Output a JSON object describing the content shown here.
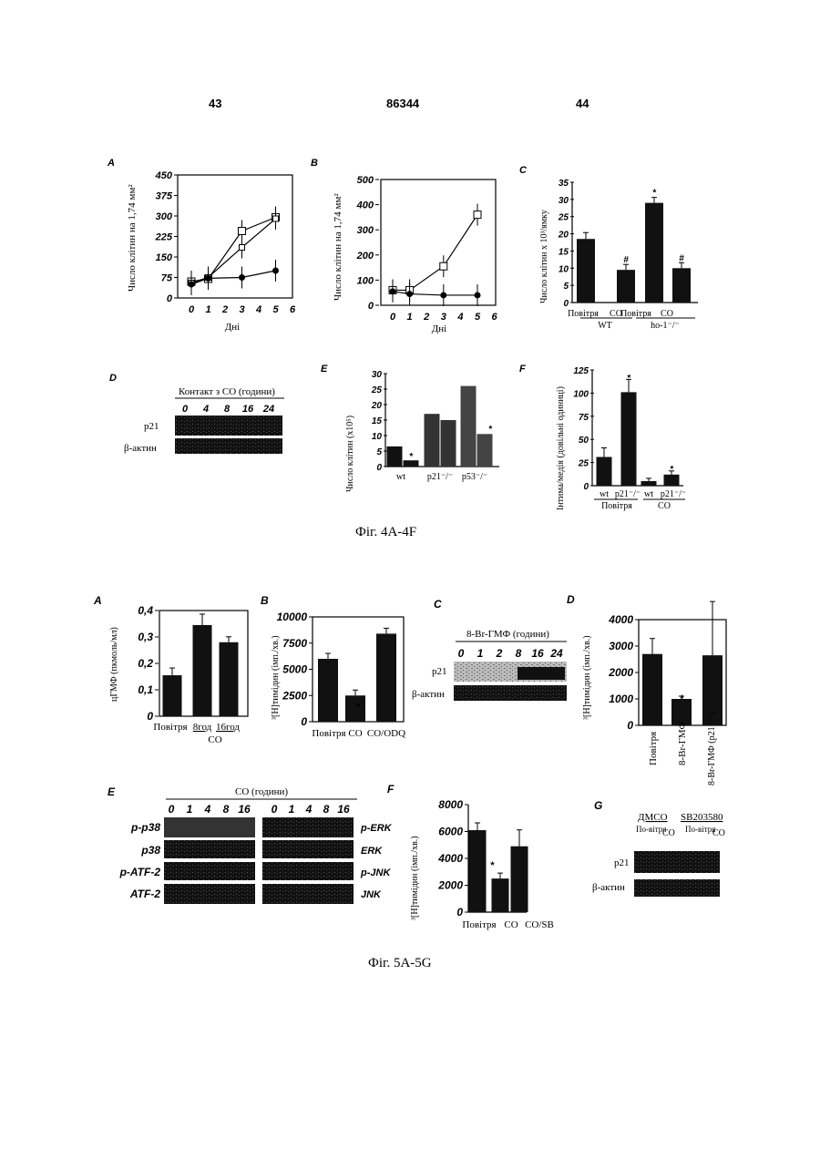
{
  "header": {
    "page_left": "43",
    "doc_number": "86344",
    "page_right": "44"
  },
  "captions": {
    "fig4": "Фіг. 4A-4F",
    "fig5": "Фіг. 5A-5G"
  },
  "fig4": {
    "A": {
      "letter": "A",
      "ylabel": "Число клітин на 1,74 мм²",
      "xlabel": "Дні",
      "yticks": [
        "450",
        "375",
        "300",
        "225",
        "150",
        "75",
        "0"
      ],
      "xticks": [
        "0",
        "1",
        "2",
        "3",
        "4",
        "5",
        "6"
      ],
      "ylim": [
        0,
        450
      ],
      "series": [
        {
          "marker": "square",
          "x": [
            0,
            1,
            3,
            5
          ],
          "y": [
            60,
            70,
            245,
            295
          ]
        },
        {
          "marker": "triangle",
          "x": [
            0,
            1,
            3,
            5
          ],
          "y": [
            55,
            75,
            185,
            290
          ]
        },
        {
          "marker": "circle",
          "x": [
            0,
            1,
            3,
            5
          ],
          "y": [
            50,
            72,
            75,
            100
          ]
        }
      ]
    },
    "B": {
      "letter": "B",
      "ylabel": "Число клітин на 1,74 мм²",
      "xlabel": "Дні",
      "yticks": [
        "500",
        "400",
        "300",
        "200",
        "100",
        "0"
      ],
      "xticks": [
        "0",
        "1",
        "2",
        "3",
        "4",
        "5",
        "6"
      ],
      "ylim": [
        0,
        500
      ],
      "series": [
        {
          "marker": "square",
          "x": [
            0,
            1,
            3,
            5
          ],
          "y": [
            60,
            60,
            155,
            360
          ]
        },
        {
          "marker": "circle",
          "x": [
            0,
            1,
            3,
            5
          ],
          "y": [
            55,
            45,
            40,
            40
          ]
        }
      ]
    },
    "C": {
      "letter": "C",
      "ylabel": "Число клітин х 10³/ямку",
      "yticks": [
        "35",
        "30",
        "25",
        "20",
        "15",
        "10",
        "5",
        "0"
      ],
      "ylim": [
        0,
        35
      ],
      "values": [
        18.5,
        9.5,
        29,
        10
      ],
      "bar_labels": [
        "Повітря",
        "CO",
        "Повітря",
        "CO"
      ],
      "groups": [
        "WT",
        "ho-1⁻/⁻"
      ],
      "marks": [
        "",
        "#",
        "*",
        "#"
      ]
    },
    "D": {
      "letter": "D",
      "title": "Контакт з CO (години)",
      "lanes": [
        "0",
        "4",
        "8",
        "16",
        "24"
      ],
      "row1": "p21",
      "row2": "β-актин"
    },
    "E": {
      "letter": "E",
      "ylabel": "Число клітин (х10⁵)",
      "yticks": [
        "30",
        "25",
        "20",
        "15",
        "10",
        "5",
        "0"
      ],
      "ylim": [
        0,
        30
      ],
      "values": [
        6.5,
        2,
        17,
        15,
        26,
        10.5
      ],
      "groups": [
        "wt",
        "p21⁻/⁻",
        "p53⁻/⁻"
      ]
    },
    "F": {
      "letter": "F",
      "ylabel": "Інтима/медія (довільні одиниці)",
      "yticks": [
        "125",
        "100",
        "75",
        "50",
        "25",
        "0"
      ],
      "ylim": [
        0,
        125
      ],
      "values": [
        31,
        101,
        5,
        12
      ],
      "bar_labels": [
        "wt",
        "p21⁻/⁻",
        "wt",
        "p21⁻/⁻"
      ],
      "groups": [
        "Повітря",
        "CO"
      ]
    }
  },
  "fig5": {
    "A": {
      "letter": "A",
      "ylabel": "цГМФ (пкмоль/мл)",
      "yticks": [
        "0,4",
        "0,3",
        "0,2",
        "0,1",
        "0"
      ],
      "ylim": [
        0,
        0.4
      ],
      "values": [
        0.155,
        0.345,
        0.28
      ],
      "cats": [
        "Повітря",
        "8год",
        "16год"
      ],
      "group": "CO"
    },
    "B": {
      "letter": "B",
      "ylabel": "³[H]тимідин (імп./хв.)",
      "yticks": [
        "10000",
        "7500",
        "5000",
        "2500",
        "0"
      ],
      "ylim": [
        0,
        10000
      ],
      "values": [
        6000,
        2500,
        8400
      ],
      "cats": [
        "Повітря",
        "CO",
        "CO/ODQ"
      ]
    },
    "C": {
      "letter": "C",
      "title": "8-Br-ГМФ (години)",
      "lanes": [
        "0",
        "1",
        "2",
        "8",
        "16",
        "24"
      ],
      "row1": "p21",
      "row2": "β-актин"
    },
    "D": {
      "letter": "D",
      "ylabel": "³[H]тимідин (імп./хв.)",
      "yticks": [
        "4000",
        "3000",
        "2000",
        "1000",
        "0"
      ],
      "ylim": [
        0,
        4000
      ],
      "values": [
        2700,
        1000,
        2650
      ],
      "cats": [
        "Повітря",
        "8-Br-ГМФ",
        "8-Br-ГМФ (p21⁻/⁻)"
      ]
    },
    "E": {
      "letter": "E",
      "title": "CO (години)",
      "lanes": [
        "0",
        "1",
        "4",
        "8",
        "16",
        "0",
        "1",
        "4",
        "8",
        "16"
      ],
      "left_rows": [
        "p-p38",
        "p38",
        "p-ATF-2",
        "ATF-2"
      ],
      "right_rows": [
        "p-ERK",
        "ERK",
        "p-JNK",
        "JNK"
      ]
    },
    "F": {
      "letter": "F",
      "ylabel": "³[H]тимідин (імп./хв.)",
      "yticks": [
        "8000",
        "6000",
        "4000",
        "2000",
        "0"
      ],
      "ylim": [
        0,
        8000
      ],
      "values": [
        6100,
        2500,
        4900
      ],
      "cats": [
        "Повітря",
        "CO",
        "CO/SB"
      ]
    },
    "G": {
      "letter": "G",
      "groups": [
        "ДМСО",
        "SB203580"
      ],
      "lanes": [
        "По-вітря",
        "CO",
        "По-вітря",
        "CO"
      ],
      "row1": "p21",
      "row2": "β-актин"
    }
  }
}
